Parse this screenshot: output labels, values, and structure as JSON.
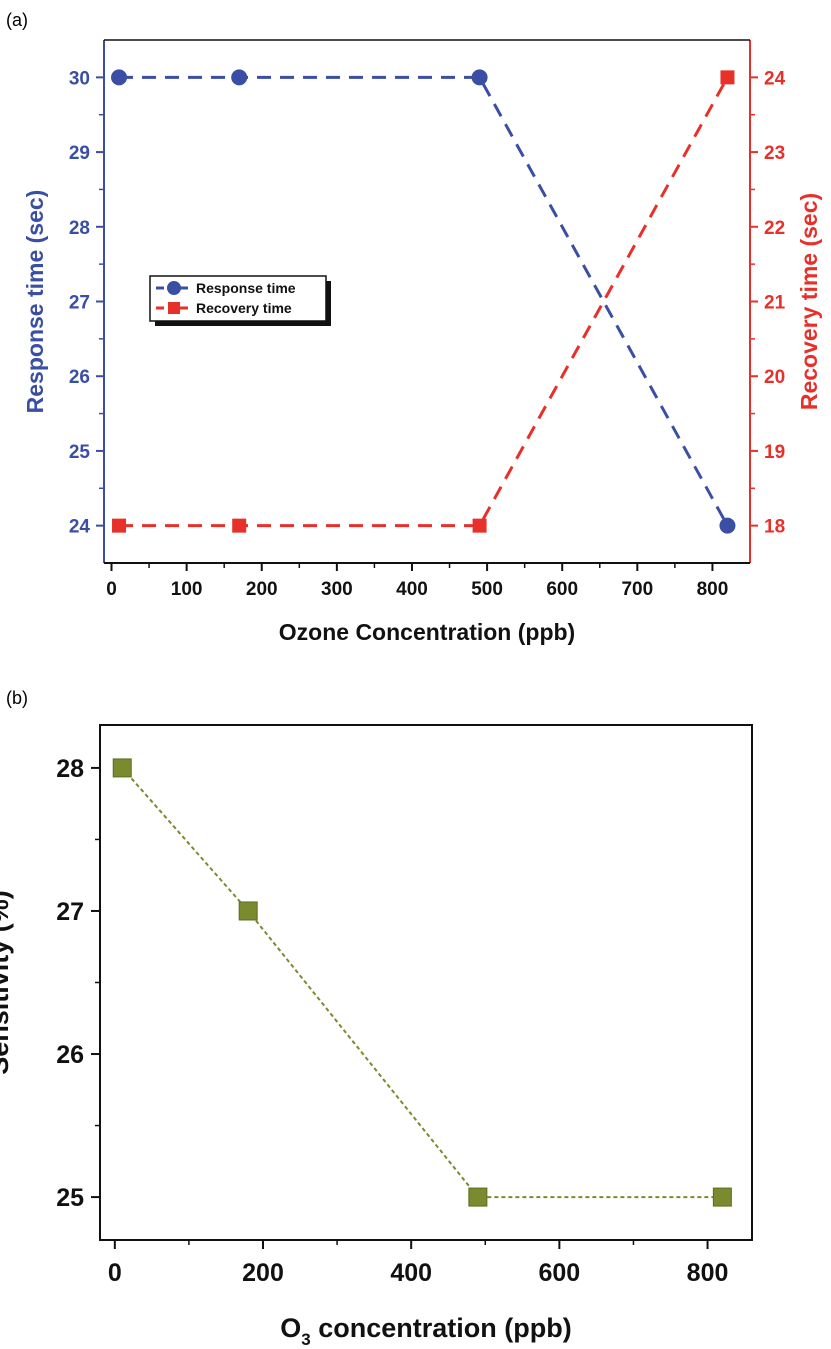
{
  "figure": {
    "panel_a_label": "(a)",
    "panel_b_label": "(b)"
  },
  "chart_data": [
    {
      "type": "line",
      "panel": "(a)",
      "xlabel": "Ozone Concentration (ppb)",
      "ylabel": "Response time (sec)",
      "y2label": "Recovery time (sec)",
      "xlim": [
        -10,
        850
      ],
      "ylim": [
        23.5,
        30.5
      ],
      "y2lim": [
        17.5,
        24.5
      ],
      "xticks": [
        0,
        100,
        200,
        300,
        400,
        500,
        600,
        700,
        800
      ],
      "yticks": [
        24,
        25,
        26,
        27,
        28,
        29,
        30
      ],
      "y2ticks": [
        18,
        19,
        20,
        21,
        22,
        23,
        24
      ],
      "grid": false,
      "legend_position": "left-middle",
      "series": [
        {
          "name": "Response time",
          "axis": "left",
          "marker": "circle",
          "color": "#3a4fa3",
          "x": [
            10,
            170,
            490,
            820
          ],
          "values": [
            30,
            30,
            30,
            24
          ]
        },
        {
          "name": "Recovery time",
          "axis": "right",
          "marker": "square",
          "color": "#e8302b",
          "x": [
            10,
            170,
            490,
            820
          ],
          "values": [
            18,
            18,
            18,
            24
          ]
        }
      ]
    },
    {
      "type": "line",
      "panel": "(b)",
      "xlabel_main": "O",
      "xlabel_sub": "3",
      "xlabel_rest": " concentration (ppb)",
      "ylabel": "Sensitivity (%)",
      "xlim": [
        -20,
        860
      ],
      "ylim": [
        24.7,
        28.3
      ],
      "xticks": [
        0,
        200,
        400,
        600,
        800
      ],
      "yticks": [
        25,
        26,
        27,
        28
      ],
      "grid": false,
      "series": [
        {
          "marker": "square",
          "color": "#7a8a2e",
          "x": [
            10,
            180,
            490,
            820
          ],
          "values": [
            28,
            27,
            25,
            25
          ]
        }
      ]
    }
  ]
}
